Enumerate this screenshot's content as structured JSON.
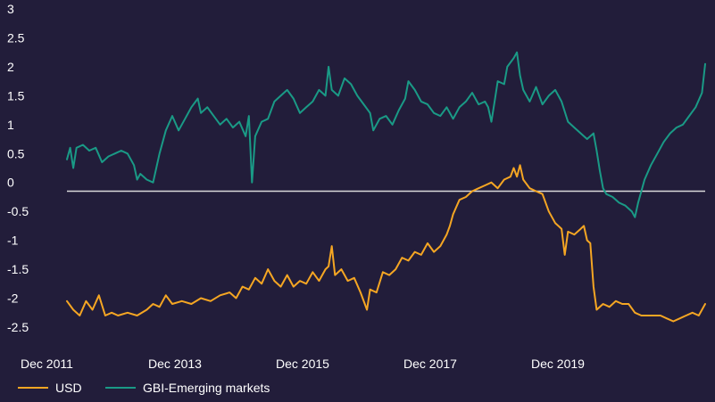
{
  "chart_data": {
    "type": "line",
    "title": "",
    "xlabel": "",
    "ylabel": "",
    "ylim": [
      -2.5,
      3
    ],
    "xlim": [
      2011.95,
      2021.95
    ],
    "grid": false,
    "y_ticks": [
      -2.5,
      -2,
      -1.5,
      -1,
      -0.5,
      0,
      0.5,
      1,
      1.5,
      2,
      2.5,
      3
    ],
    "y_tick_labels": [
      "-2.5",
      "-2",
      "-1.5",
      "-1",
      "-0.5",
      "0",
      "0.5",
      "1",
      "1.5",
      "2",
      "2.5",
      "3"
    ],
    "x_ticks": [
      {
        "label": "Dec 2011",
        "value": 2011.95
      },
      {
        "label": "Dec 2013",
        "value": 2013.95
      },
      {
        "label": "Dec 2015",
        "value": 2015.95
      },
      {
        "label": "Dec 2017",
        "value": 2017.95
      },
      {
        "label": "Dec 2019",
        "value": 2019.95
      }
    ],
    "reference_line": {
      "y": -0.15,
      "color": "#d9d9d9"
    },
    "legend_position": "bottom-left",
    "series": [
      {
        "name": "USD",
        "color": "#f5a623",
        "points": [
          [
            2011.95,
            -2.05
          ],
          [
            2012.05,
            -2.2
          ],
          [
            2012.15,
            -2.3
          ],
          [
            2012.25,
            -2.05
          ],
          [
            2012.35,
            -2.2
          ],
          [
            2012.45,
            -1.95
          ],
          [
            2012.55,
            -2.3
          ],
          [
            2012.65,
            -2.25
          ],
          [
            2012.75,
            -2.3
          ],
          [
            2012.9,
            -2.25
          ],
          [
            2013.05,
            -2.3
          ],
          [
            2013.2,
            -2.2
          ],
          [
            2013.3,
            -2.1
          ],
          [
            2013.4,
            -2.15
          ],
          [
            2013.5,
            -1.95
          ],
          [
            2013.6,
            -2.1
          ],
          [
            2013.75,
            -2.05
          ],
          [
            2013.9,
            -2.1
          ],
          [
            2014.05,
            -2.0
          ],
          [
            2014.2,
            -2.05
          ],
          [
            2014.35,
            -1.95
          ],
          [
            2014.5,
            -1.9
          ],
          [
            2014.6,
            -2.0
          ],
          [
            2014.7,
            -1.8
          ],
          [
            2014.8,
            -1.85
          ],
          [
            2014.9,
            -1.65
          ],
          [
            2015.0,
            -1.75
          ],
          [
            2015.1,
            -1.5
          ],
          [
            2015.2,
            -1.7
          ],
          [
            2015.3,
            -1.8
          ],
          [
            2015.4,
            -1.6
          ],
          [
            2015.5,
            -1.8
          ],
          [
            2015.6,
            -1.7
          ],
          [
            2015.7,
            -1.75
          ],
          [
            2015.8,
            -1.55
          ],
          [
            2015.9,
            -1.7
          ],
          [
            2016.0,
            -1.5
          ],
          [
            2016.05,
            -1.45
          ],
          [
            2016.1,
            -1.1
          ],
          [
            2016.15,
            -1.6
          ],
          [
            2016.25,
            -1.5
          ],
          [
            2016.35,
            -1.7
          ],
          [
            2016.45,
            -1.65
          ],
          [
            2016.55,
            -1.9
          ],
          [
            2016.65,
            -2.2
          ],
          [
            2016.7,
            -1.85
          ],
          [
            2016.8,
            -1.9
          ],
          [
            2016.9,
            -1.55
          ],
          [
            2017.0,
            -1.6
          ],
          [
            2017.1,
            -1.5
          ],
          [
            2017.2,
            -1.3
          ],
          [
            2017.3,
            -1.35
          ],
          [
            2017.4,
            -1.2
          ],
          [
            2017.5,
            -1.25
          ],
          [
            2017.6,
            -1.05
          ],
          [
            2017.7,
            -1.2
          ],
          [
            2017.8,
            -1.1
          ],
          [
            2017.9,
            -0.9
          ],
          [
            2017.95,
            -0.75
          ],
          [
            2018.0,
            -0.55
          ],
          [
            2018.1,
            -0.3
          ],
          [
            2018.2,
            -0.25
          ],
          [
            2018.3,
            -0.15
          ],
          [
            2018.4,
            -0.1
          ],
          [
            2018.5,
            -0.05
          ],
          [
            2018.6,
            0.0
          ],
          [
            2018.7,
            -0.1
          ],
          [
            2018.8,
            0.05
          ],
          [
            2018.9,
            0.1
          ],
          [
            2018.95,
            0.25
          ],
          [
            2019.0,
            0.1
          ],
          [
            2019.05,
            0.3
          ],
          [
            2019.1,
            0.05
          ],
          [
            2019.2,
            -0.1
          ],
          [
            2019.3,
            -0.15
          ],
          [
            2019.4,
            -0.2
          ],
          [
            2019.5,
            -0.5
          ],
          [
            2019.6,
            -0.7
          ],
          [
            2019.7,
            -0.8
          ],
          [
            2019.75,
            -1.25
          ],
          [
            2019.8,
            -0.85
          ],
          [
            2019.9,
            -0.9
          ],
          [
            2020.0,
            -0.8
          ],
          [
            2020.05,
            -0.75
          ],
          [
            2020.1,
            -1.0
          ],
          [
            2020.15,
            -1.05
          ],
          [
            2020.2,
            -1.8
          ],
          [
            2020.25,
            -2.2
          ],
          [
            2020.35,
            -2.1
          ],
          [
            2020.45,
            -2.15
          ],
          [
            2020.55,
            -2.05
          ],
          [
            2020.65,
            -2.1
          ],
          [
            2020.75,
            -2.1
          ],
          [
            2020.85,
            -2.25
          ],
          [
            2020.95,
            -2.3
          ],
          [
            2021.05,
            -2.3
          ],
          [
            2021.15,
            -2.3
          ],
          [
            2021.25,
            -2.3
          ],
          [
            2021.35,
            -2.35
          ],
          [
            2021.45,
            -2.4
          ],
          [
            2021.55,
            -2.35
          ],
          [
            2021.65,
            -2.3
          ],
          [
            2021.75,
            -2.25
          ],
          [
            2021.85,
            -2.3
          ],
          [
            2021.95,
            -2.1
          ]
        ]
      },
      {
        "name": "GBI-Emerging markets",
        "color": "#1a9a86",
        "points": [
          [
            2011.95,
            0.4
          ],
          [
            2012.0,
            0.6
          ],
          [
            2012.05,
            0.25
          ],
          [
            2012.1,
            0.6
          ],
          [
            2012.2,
            0.65
          ],
          [
            2012.3,
            0.55
          ],
          [
            2012.4,
            0.6
          ],
          [
            2012.5,
            0.35
          ],
          [
            2012.6,
            0.45
          ],
          [
            2012.7,
            0.5
          ],
          [
            2012.8,
            0.55
          ],
          [
            2012.9,
            0.5
          ],
          [
            2013.0,
            0.3
          ],
          [
            2013.05,
            0.05
          ],
          [
            2013.1,
            0.15
          ],
          [
            2013.2,
            0.05
          ],
          [
            2013.3,
            0.0
          ],
          [
            2013.35,
            0.25
          ],
          [
            2013.4,
            0.5
          ],
          [
            2013.5,
            0.9
          ],
          [
            2013.6,
            1.15
          ],
          [
            2013.7,
            0.9
          ],
          [
            2013.8,
            1.1
          ],
          [
            2013.9,
            1.3
          ],
          [
            2014.0,
            1.45
          ],
          [
            2014.05,
            1.2
          ],
          [
            2014.15,
            1.3
          ],
          [
            2014.25,
            1.15
          ],
          [
            2014.35,
            1.0
          ],
          [
            2014.45,
            1.1
          ],
          [
            2014.55,
            0.95
          ],
          [
            2014.65,
            1.05
          ],
          [
            2014.75,
            0.8
          ],
          [
            2014.8,
            1.15
          ],
          [
            2014.85,
            0.0
          ],
          [
            2014.9,
            0.8
          ],
          [
            2015.0,
            1.05
          ],
          [
            2015.1,
            1.1
          ],
          [
            2015.2,
            1.4
          ],
          [
            2015.3,
            1.5
          ],
          [
            2015.4,
            1.6
          ],
          [
            2015.5,
            1.45
          ],
          [
            2015.6,
            1.2
          ],
          [
            2015.7,
            1.3
          ],
          [
            2015.8,
            1.4
          ],
          [
            2015.9,
            1.6
          ],
          [
            2016.0,
            1.5
          ],
          [
            2016.05,
            2.0
          ],
          [
            2016.1,
            1.6
          ],
          [
            2016.2,
            1.5
          ],
          [
            2016.3,
            1.8
          ],
          [
            2016.4,
            1.7
          ],
          [
            2016.5,
            1.5
          ],
          [
            2016.6,
            1.35
          ],
          [
            2016.7,
            1.2
          ],
          [
            2016.75,
            0.9
          ],
          [
            2016.85,
            1.1
          ],
          [
            2016.95,
            1.15
          ],
          [
            2017.05,
            1.0
          ],
          [
            2017.15,
            1.25
          ],
          [
            2017.25,
            1.45
          ],
          [
            2017.3,
            1.75
          ],
          [
            2017.4,
            1.6
          ],
          [
            2017.5,
            1.4
          ],
          [
            2017.6,
            1.35
          ],
          [
            2017.7,
            1.2
          ],
          [
            2017.8,
            1.15
          ],
          [
            2017.9,
            1.3
          ],
          [
            2018.0,
            1.1
          ],
          [
            2018.1,
            1.3
          ],
          [
            2018.2,
            1.4
          ],
          [
            2018.3,
            1.55
          ],
          [
            2018.4,
            1.35
          ],
          [
            2018.5,
            1.4
          ],
          [
            2018.55,
            1.3
          ],
          [
            2018.6,
            1.05
          ],
          [
            2018.65,
            1.4
          ],
          [
            2018.7,
            1.75
          ],
          [
            2018.8,
            1.7
          ],
          [
            2018.85,
            2.0
          ],
          [
            2018.95,
            2.15
          ],
          [
            2019.0,
            2.25
          ],
          [
            2019.05,
            1.85
          ],
          [
            2019.1,
            1.6
          ],
          [
            2019.2,
            1.4
          ],
          [
            2019.3,
            1.65
          ],
          [
            2019.4,
            1.35
          ],
          [
            2019.5,
            1.5
          ],
          [
            2019.6,
            1.6
          ],
          [
            2019.7,
            1.4
          ],
          [
            2019.8,
            1.05
          ],
          [
            2019.9,
            0.95
          ],
          [
            2020.0,
            0.85
          ],
          [
            2020.1,
            0.75
          ],
          [
            2020.2,
            0.85
          ],
          [
            2020.25,
            0.55
          ],
          [
            2020.3,
            0.2
          ],
          [
            2020.35,
            -0.1
          ],
          [
            2020.4,
            -0.2
          ],
          [
            2020.5,
            -0.25
          ],
          [
            2020.6,
            -0.35
          ],
          [
            2020.7,
            -0.4
          ],
          [
            2020.8,
            -0.5
          ],
          [
            2020.85,
            -0.6
          ],
          [
            2020.9,
            -0.35
          ],
          [
            2020.95,
            -0.15
          ],
          [
            2021.0,
            0.05
          ],
          [
            2021.1,
            0.3
          ],
          [
            2021.2,
            0.5
          ],
          [
            2021.3,
            0.7
          ],
          [
            2021.4,
            0.85
          ],
          [
            2021.5,
            0.95
          ],
          [
            2021.6,
            1.0
          ],
          [
            2021.7,
            1.15
          ],
          [
            2021.8,
            1.3
          ],
          [
            2021.9,
            1.55
          ],
          [
            2021.95,
            2.05
          ]
        ]
      }
    ]
  }
}
